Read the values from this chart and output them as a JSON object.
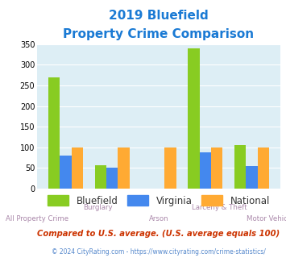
{
  "title_line1": "2019 Bluefield",
  "title_line2": "Property Crime Comparison",
  "title_color": "#1a7ad4",
  "categories": [
    "All Property Crime",
    "Burglary",
    "Arson",
    "Larceny & Theft",
    "Motor Vehicle Theft"
  ],
  "bluefield": [
    270,
    57,
    0,
    340,
    105
  ],
  "virginia": [
    80,
    50,
    0,
    87,
    55
  ],
  "national": [
    100,
    100,
    100,
    100,
    100
  ],
  "arson_idx": 2,
  "colors": {
    "bluefield": "#88cc22",
    "virginia": "#4488ee",
    "national": "#ffaa33"
  },
  "ylim": [
    0,
    350
  ],
  "yticks": [
    0,
    50,
    100,
    150,
    200,
    250,
    300,
    350
  ],
  "plot_bg": "#ddeef5",
  "legend_labels": [
    "Bluefield",
    "Virginia",
    "National"
  ],
  "legend_text_color": "#333333",
  "top_labels": [
    "",
    "Burglary",
    "",
    "Larceny & Theft",
    ""
  ],
  "bot_labels": [
    "All Property Crime",
    "",
    "Arson",
    "",
    "Motor Vehicle Theft"
  ],
  "xlabel_color": "#aa88aa",
  "footnote1": "Compared to U.S. average. (U.S. average equals 100)",
  "footnote2": "© 2024 CityRating.com - https://www.cityrating.com/crime-statistics/",
  "footnote1_color": "#cc3300",
  "footnote2_color": "#5588cc",
  "bar_width": 0.25
}
